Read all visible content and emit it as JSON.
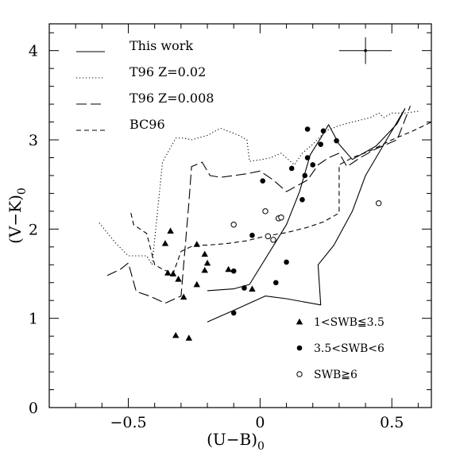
{
  "chart_data": {
    "type": "line",
    "xlabel": "(U−B)",
    "xlabel_sub": "0",
    "ylabel": "(V−K)",
    "ylabel_sub": "0",
    "xlim": [
      -0.8,
      0.65
    ],
    "ylim": [
      0,
      4.3
    ],
    "x_ticks": [
      -0.5,
      0,
      0.5
    ],
    "x_tick_labels": [
      "−0.5",
      "0",
      "0.5"
    ],
    "y_ticks": [
      0,
      1,
      2,
      3,
      4
    ],
    "y_tick_labels": [
      "0",
      "1",
      "2",
      "3",
      "4"
    ],
    "x_minor_step": 0.1,
    "y_minor_step": 0.2,
    "grid": false,
    "legend_position": "top-left",
    "series": [
      {
        "name": "This work",
        "style": "solid",
        "segments": [
          [
            [
              -0.2,
              1.31
            ],
            [
              -0.1,
              1.33
            ],
            [
              -0.04,
              1.38
            ],
            [
              0.1,
              2.05
            ],
            [
              0.15,
              2.42
            ],
            [
              0.19,
              2.83
            ],
            [
              0.23,
              3.02
            ],
            [
              0.26,
              3.17
            ],
            [
              0.3,
              2.95
            ],
            [
              0.35,
              2.78
            ],
            [
              0.44,
              2.93
            ],
            [
              0.52,
              3.18
            ],
            [
              0.55,
              3.35
            ],
            [
              0.54,
              3.3
            ],
            [
              0.48,
              3.0
            ],
            [
              0.4,
              2.6
            ],
            [
              0.35,
              2.2
            ],
            [
              0.28,
              1.82
            ],
            [
              0.22,
              1.6
            ],
            [
              0.23,
              1.15
            ],
            [
              0.1,
              1.22
            ],
            [
              0.02,
              1.25
            ],
            [
              -0.1,
              1.09
            ],
            [
              -0.2,
              0.96
            ]
          ]
        ]
      },
      {
        "name": "T96 Z=0.02",
        "style": "dotted",
        "segments": [
          [
            [
              -0.61,
              2.07
            ],
            [
              -0.55,
              1.85
            ],
            [
              -0.5,
              1.7
            ],
            [
              -0.43,
              1.7
            ],
            [
              -0.41,
              1.6
            ],
            [
              -0.37,
              2.75
            ],
            [
              -0.32,
              3.02
            ],
            [
              -0.29,
              3.02
            ],
            [
              -0.26,
              3.0
            ],
            [
              -0.2,
              3.05
            ],
            [
              -0.15,
              3.13
            ],
            [
              -0.08,
              3.05
            ],
            [
              -0.05,
              3.0
            ],
            [
              -0.04,
              2.76
            ],
            [
              0.01,
              2.78
            ],
            [
              0.04,
              2.8
            ],
            [
              0.08,
              2.85
            ],
            [
              0.13,
              2.72
            ],
            [
              0.16,
              2.85
            ],
            [
              0.2,
              2.95
            ],
            [
              0.25,
              3.1
            ],
            [
              0.3,
              3.16
            ],
            [
              0.35,
              3.2
            ],
            [
              0.42,
              3.25
            ],
            [
              0.45,
              3.3
            ],
            [
              0.47,
              3.25
            ],
            [
              0.5,
              3.3
            ],
            [
              0.55,
              3.3
            ],
            [
              0.6,
              3.32
            ]
          ]
        ]
      },
      {
        "name": "T96 Z=0.008",
        "style": "long-dash",
        "segments": [
          [
            [
              -0.58,
              1.48
            ],
            [
              -0.53,
              1.55
            ],
            [
              -0.5,
              1.62
            ],
            [
              -0.47,
              1.3
            ],
            [
              -0.42,
              1.25
            ],
            [
              -0.36,
              1.17
            ],
            [
              -0.3,
              1.25
            ],
            [
              -0.27,
              2.3
            ],
            [
              -0.26,
              2.7
            ],
            [
              -0.22,
              2.75
            ],
            [
              -0.19,
              2.6
            ],
            [
              -0.15,
              2.58
            ],
            [
              -0.1,
              2.6
            ],
            [
              -0.05,
              2.62
            ],
            [
              0,
              2.65
            ],
            [
              0.05,
              2.55
            ],
            [
              0.1,
              2.42
            ],
            [
              0.18,
              2.55
            ],
            [
              0.22,
              2.72
            ],
            [
              0.26,
              2.8
            ],
            [
              0.3,
              2.85
            ],
            [
              0.33,
              2.7
            ],
            [
              0.38,
              2.8
            ],
            [
              0.44,
              2.9
            ],
            [
              0.52,
              3.0
            ],
            [
              0.57,
              3.38
            ]
          ]
        ]
      },
      {
        "name": "BC96",
        "style": "short-dash",
        "segments": [
          [
            [
              -0.49,
              2.18
            ],
            [
              -0.48,
              2.05
            ],
            [
              -0.43,
              1.95
            ],
            [
              -0.4,
              1.6
            ],
            [
              -0.37,
              1.55
            ],
            [
              -0.33,
              1.5
            ],
            [
              -0.3,
              1.75
            ],
            [
              -0.25,
              1.82
            ],
            [
              -0.2,
              1.82
            ],
            [
              -0.12,
              1.84
            ],
            [
              -0.05,
              1.87
            ],
            [
              0.02,
              1.92
            ],
            [
              0.1,
              1.96
            ],
            [
              0.18,
              2.02
            ],
            [
              0.24,
              2.08
            ],
            [
              0.3,
              2.18
            ],
            [
              0.3,
              2.55
            ],
            [
              0.3,
              2.72
            ],
            [
              0.35,
              2.8
            ],
            [
              0.42,
              2.88
            ],
            [
              0.5,
              3.0
            ],
            [
              0.58,
              3.1
            ],
            [
              0.65,
              3.2
            ]
          ]
        ]
      }
    ],
    "point_groups": [
      {
        "name": "1<SWB≦3.5",
        "marker": "filled-triangle",
        "points": [
          [
            -0.36,
            1.84
          ],
          [
            -0.34,
            1.98
          ],
          [
            -0.35,
            1.51
          ],
          [
            -0.33,
            1.5
          ],
          [
            -0.31,
            1.44
          ],
          [
            -0.32,
            0.81
          ],
          [
            -0.27,
            0.78
          ],
          [
            -0.29,
            1.24
          ],
          [
            -0.24,
            1.83
          ],
          [
            -0.21,
            1.72
          ],
          [
            -0.2,
            1.62
          ],
          [
            -0.21,
            1.54
          ],
          [
            -0.24,
            1.38
          ],
          [
            -0.12,
            1.55
          ],
          [
            -0.03,
            1.33
          ]
        ]
      },
      {
        "name": "3.5<SWB<6",
        "marker": "filled-circle",
        "points": [
          [
            -0.1,
            1.06
          ],
          [
            -0.1,
            1.53
          ],
          [
            -0.06,
            1.34
          ],
          [
            -0.03,
            1.93
          ],
          [
            0.01,
            2.54
          ],
          [
            0.06,
            1.4
          ],
          [
            0.1,
            1.63
          ],
          [
            0.12,
            2.68
          ],
          [
            0.16,
            2.33
          ],
          [
            0.17,
            2.6
          ],
          [
            0.18,
            2.8
          ],
          [
            0.18,
            3.12
          ],
          [
            0.2,
            2.72
          ],
          [
            0.23,
            2.95
          ],
          [
            0.24,
            3.1
          ],
          [
            0.29,
            2.99
          ]
        ]
      },
      {
        "name": "SWB≧6",
        "marker": "open-circle",
        "points": [
          [
            -0.1,
            2.05
          ],
          [
            0.02,
            2.2
          ],
          [
            0.03,
            1.92
          ],
          [
            0.05,
            1.88
          ],
          [
            0.07,
            2.12
          ],
          [
            0.08,
            2.13
          ],
          [
            0.45,
            2.29
          ]
        ]
      }
    ],
    "error_bar": {
      "x": 0.4,
      "y": 4.0,
      "xerr": 0.1,
      "yerr": 0.15
    }
  }
}
